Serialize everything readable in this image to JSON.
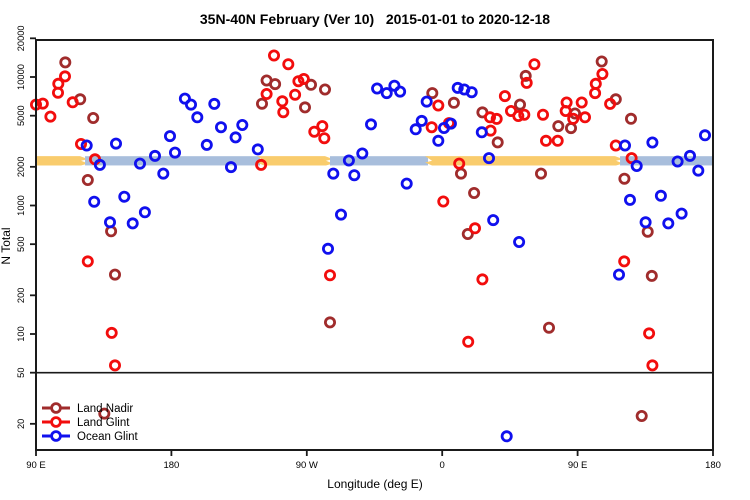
{
  "title": "35N-40N February (Ver 10)   2015-01-01 to 2020-12-18",
  "chart_data": {
    "type": "scatter",
    "title": "35N-40N February (Ver 10)   2015-01-01 to 2020-12-18",
    "xlabel": "Longitude (deg E)",
    "ylabel": "N Total",
    "x_axis": {
      "note": "longitude increases eastward from 90E, wrapping past the dateline and prime meridian to 180",
      "ticks_deg": [
        90,
        180,
        270,
        360,
        450,
        540
      ],
      "tick_labels": [
        "90 E",
        "180",
        "90 W",
        "0",
        "90 E",
        "180"
      ],
      "range_deg": [
        90,
        540
      ]
    },
    "y_axis": {
      "scale": "log",
      "ticks": [
        20,
        50,
        100,
        200,
        500,
        1000,
        2000,
        5000,
        10000,
        20000
      ],
      "visible_range": [
        13,
        18800
      ]
    },
    "reference_line_y": 50,
    "legend_position": "bottom-left",
    "grid": false,
    "bands": {
      "n_range": [
        2050,
        2420
      ],
      "colors": {
        "yellow": "#F9CC6D",
        "blue": "#A8BEDC"
      },
      "segments": [
        {
          "x_deg": [
            90,
            122.6
          ],
          "color": "yellow"
        },
        {
          "x_deg": [
            122.6,
            238.9
          ],
          "color": "blue"
        },
        {
          "x_deg": [
            238.9,
            285.4
          ],
          "color": "yellow"
        },
        {
          "x_deg": [
            285.4,
            350.6
          ],
          "color": "blue"
        },
        {
          "x_deg": [
            350.6,
            478.2
          ],
          "color": "yellow"
        },
        {
          "x_deg": [
            478.2,
            540
          ],
          "color": "blue"
        }
      ]
    },
    "series": [
      {
        "name": "Land Nadir",
        "color": "#A02C2C",
        "points": [
          [
            109.5,
            13000
          ],
          [
            119.4,
            6700
          ],
          [
            128,
            4800
          ],
          [
            124.4,
            1580
          ],
          [
            139.9,
            630
          ],
          [
            142.5,
            290
          ],
          [
            135.4,
            24
          ],
          [
            243.3,
            9400
          ],
          [
            248.9,
            8800
          ],
          [
            240.2,
            6200
          ],
          [
            272.8,
            8700
          ],
          [
            282.1,
            8000
          ],
          [
            268.8,
            5800
          ],
          [
            285.4,
            123
          ],
          [
            353.4,
            7500
          ],
          [
            367.8,
            6300
          ],
          [
            386.7,
            5300
          ],
          [
            396.9,
            3100
          ],
          [
            411.7,
            6100
          ],
          [
            415.5,
            10200
          ],
          [
            372.5,
            1770
          ],
          [
            381.2,
            1250
          ],
          [
            377,
            600
          ],
          [
            425.7,
            1770
          ],
          [
            431,
            112
          ],
          [
            466,
            13200
          ],
          [
            448.3,
            5200
          ],
          [
            437.2,
            4150
          ],
          [
            445.6,
            4000
          ],
          [
            475.4,
            6700
          ],
          [
            485.5,
            4730
          ],
          [
            481.1,
            1615
          ],
          [
            496.6,
            625
          ],
          [
            499.3,
            283
          ],
          [
            492.6,
            23
          ]
        ]
      },
      {
        "name": "Land Glint",
        "color": "#F20D0D",
        "points": [
          [
            109.3,
            10100
          ],
          [
            104.8,
            8850
          ],
          [
            104.6,
            7550
          ],
          [
            90,
            6100
          ],
          [
            94.5,
            6210
          ],
          [
            114.4,
            6360
          ],
          [
            99.6,
            4920
          ],
          [
            119.9,
            3010
          ],
          [
            129.2,
            2290
          ],
          [
            124.4,
            367
          ],
          [
            140.3,
            102
          ],
          [
            142.5,
            57
          ],
          [
            248.2,
            14700
          ],
          [
            257.7,
            12580
          ],
          [
            264.4,
            9280
          ],
          [
            268,
            9650
          ],
          [
            243.3,
            7370
          ],
          [
            262.2,
            7280
          ],
          [
            253.7,
            6470
          ],
          [
            254.4,
            5320
          ],
          [
            275,
            3750
          ],
          [
            280.3,
            4150
          ],
          [
            281.6,
            3340
          ],
          [
            239.6,
            2070
          ],
          [
            285.4,
            287
          ],
          [
            357.4,
            6000
          ],
          [
            364.5,
            4380
          ],
          [
            353,
            4070
          ],
          [
            391.8,
            4860
          ],
          [
            396.2,
            4720
          ],
          [
            392.2,
            3830
          ],
          [
            401.7,
            7100
          ],
          [
            405.7,
            5440
          ],
          [
            410.6,
            4970
          ],
          [
            414.6,
            5090
          ],
          [
            421.3,
            12580
          ],
          [
            416.2,
            9000
          ],
          [
            371.3,
            2120
          ],
          [
            360.7,
            1075
          ],
          [
            381.8,
            665
          ],
          [
            386.7,
            266
          ],
          [
            377.3,
            87
          ],
          [
            427,
            5090
          ],
          [
            429,
            3190
          ],
          [
            442.7,
            6330
          ],
          [
            452.7,
            6330
          ],
          [
            442.1,
            5440
          ],
          [
            447.1,
            4730
          ],
          [
            454.9,
            4860
          ],
          [
            436.8,
            3190
          ],
          [
            466.5,
            10550
          ],
          [
            462.1,
            8850
          ],
          [
            461.6,
            7500
          ],
          [
            471.6,
            6170
          ],
          [
            475.4,
            2930
          ],
          [
            485.9,
            2340
          ],
          [
            481,
            367
          ],
          [
            497.5,
            101
          ],
          [
            499.7,
            57
          ]
        ]
      },
      {
        "name": "Ocean Glint",
        "color": "#1010EE",
        "points": [
          [
            123.7,
            2930
          ],
          [
            143.2,
            3030
          ],
          [
            132.5,
            2070
          ],
          [
            128.7,
            1070
          ],
          [
            148.7,
            1170
          ],
          [
            139.2,
            740
          ],
          [
            154.3,
            726
          ],
          [
            162.4,
            885
          ],
          [
            189,
            6790
          ],
          [
            193,
            6100
          ],
          [
            197.2,
            4860
          ],
          [
            179.1,
            3470
          ],
          [
            182.4,
            2580
          ],
          [
            169.1,
            2430
          ],
          [
            159.1,
            2120
          ],
          [
            174.6,
            1770
          ],
          [
            208.5,
            6170
          ],
          [
            213,
            4070
          ],
          [
            227.1,
            4230
          ],
          [
            222.7,
            3390
          ],
          [
            203.5,
            2960
          ],
          [
            237.4,
            2735
          ],
          [
            219.6,
            1990
          ],
          [
            298,
            2240
          ],
          [
            306.9,
            2540
          ],
          [
            312.7,
            4280
          ],
          [
            287.6,
            1770
          ],
          [
            301.6,
            1720
          ],
          [
            292.7,
            850
          ],
          [
            284.1,
            460
          ],
          [
            316.7,
            8140
          ],
          [
            323.1,
            7500
          ],
          [
            328.2,
            8560
          ],
          [
            332,
            7700
          ],
          [
            349.7,
            6430
          ],
          [
            346.4,
            4550
          ],
          [
            342.4,
            3920
          ],
          [
            361.2,
            4010
          ],
          [
            365.8,
            4340
          ],
          [
            357.4,
            3190
          ],
          [
            370.3,
            8230
          ],
          [
            374.7,
            8000
          ],
          [
            379.6,
            7610
          ],
          [
            386.3,
            3710
          ],
          [
            391.1,
            2340
          ],
          [
            336.4,
            1480
          ],
          [
            393.9,
            770
          ],
          [
            411.1,
            520
          ],
          [
            477.5,
            290
          ],
          [
            481.5,
            2930
          ],
          [
            499.7,
            3090
          ],
          [
            534.7,
            3520
          ],
          [
            489.3,
            2030
          ],
          [
            516.5,
            2200
          ],
          [
            524.7,
            2430
          ],
          [
            530.2,
            1870
          ],
          [
            484.8,
            1105
          ],
          [
            505.4,
            1190
          ],
          [
            519.1,
            865
          ],
          [
            510.3,
            726
          ],
          [
            495.2,
            740
          ],
          [
            402.9,
            16
          ]
        ]
      }
    ]
  },
  "legend": {
    "items": [
      {
        "label": "Land Nadir"
      },
      {
        "label": "Land Glint"
      },
      {
        "label": "Ocean Glint"
      }
    ]
  }
}
